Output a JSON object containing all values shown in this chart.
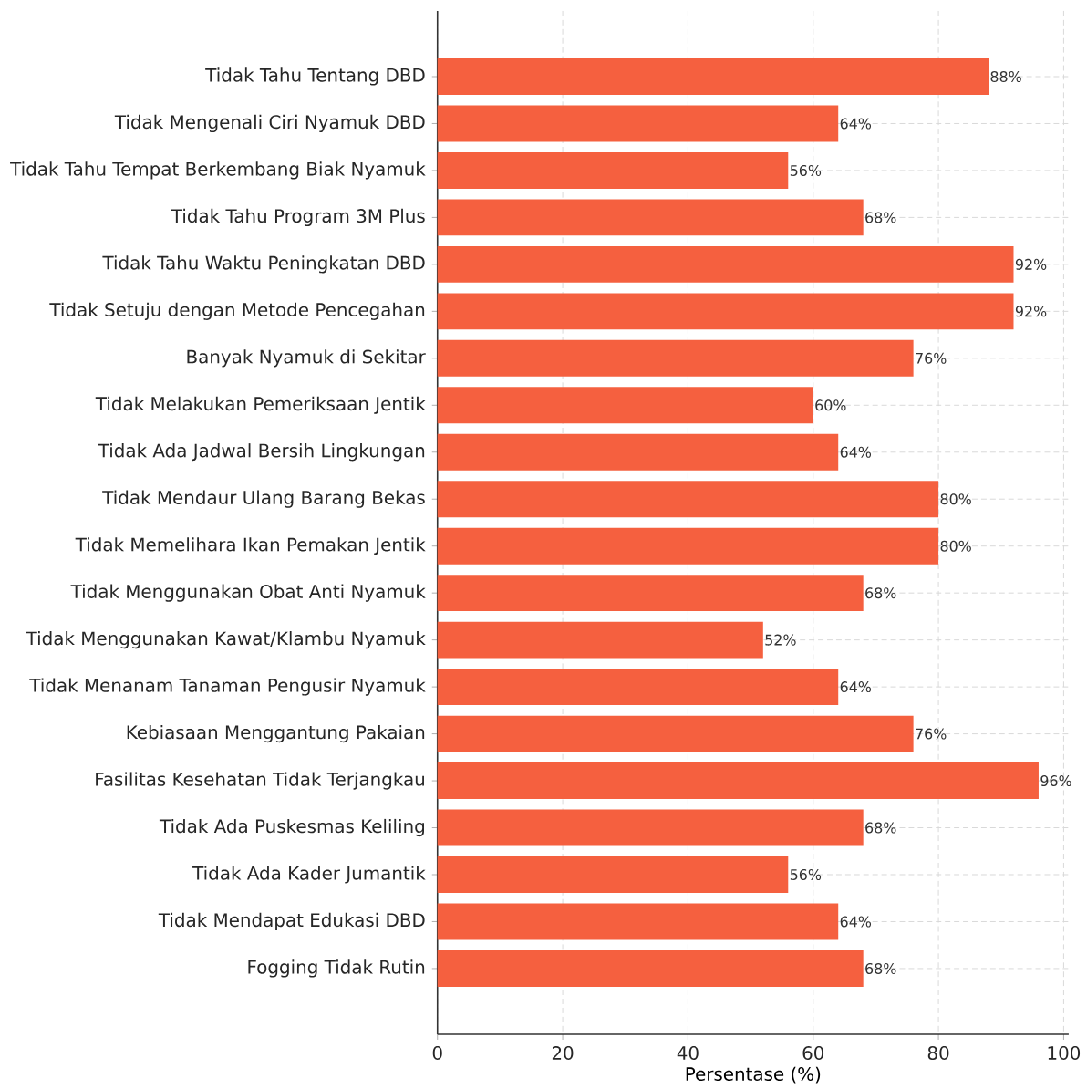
{
  "chart_data": {
    "type": "bar",
    "orientation": "horizontal",
    "xlabel": "Persentase (%)",
    "categories": [
      "Tidak Tahu Tentang DBD",
      "Tidak Mengenali Ciri Nyamuk DBD",
      "Tidak Tahu Tempat Berkembang Biak Nyamuk",
      "Tidak Tahu Program 3M Plus",
      "Tidak Tahu Waktu Peningkatan DBD",
      "Tidak Setuju dengan Metode Pencegahan",
      "Banyak Nyamuk di Sekitar",
      "Tidak Melakukan Pemeriksaan Jentik",
      "Tidak Ada Jadwal Bersih Lingkungan",
      "Tidak Mendaur Ulang Barang Bekas",
      "Tidak Memelihara Ikan Pemakan Jentik",
      "Tidak Menggunakan Obat Anti Nyamuk",
      "Tidak Menggunakan Kawat/Klambu Nyamuk",
      "Tidak Menanam Tanaman Pengusir Nyamuk",
      "Kebiasaan Menggantung Pakaian",
      "Fasilitas Kesehatan Tidak Terjangkau",
      "Tidak Ada Puskesmas Keliling",
      "Tidak Ada Kader Jumantik",
      "Tidak Mendapat Edukasi DBD",
      "Fogging Tidak Rutin"
    ],
    "values": [
      88,
      64,
      56,
      68,
      92,
      92,
      76,
      60,
      64,
      80,
      80,
      68,
      52,
      64,
      76,
      96,
      68,
      56,
      64,
      68
    ],
    "value_labels": [
      "88%",
      "64%",
      "56%",
      "68%",
      "92%",
      "92%",
      "76%",
      "60%",
      "64%",
      "80%",
      "80%",
      "68%",
      "52%",
      "64%",
      "76%",
      "96%",
      "68%",
      "56%",
      "64%",
      "68%"
    ],
    "color": "#f5603f",
    "xlim": [
      0,
      100.8
    ],
    "xticks": [
      0,
      20,
      40,
      60,
      80,
      100
    ],
    "grid": true
  }
}
